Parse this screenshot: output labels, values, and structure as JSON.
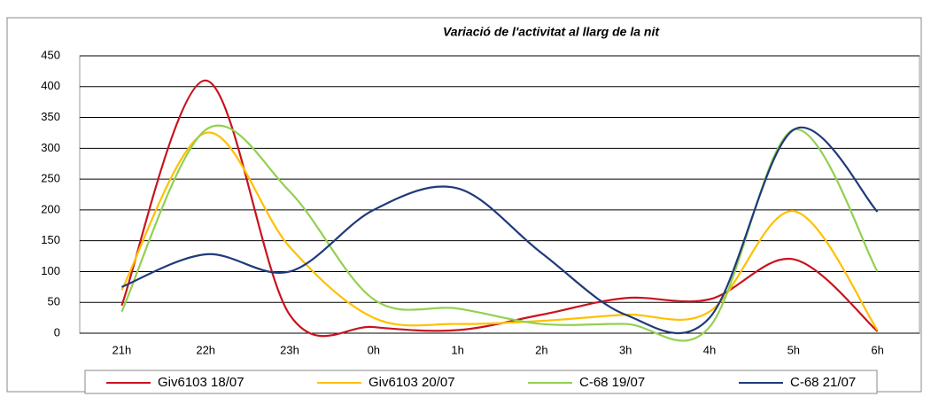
{
  "chart_data": {
    "type": "line",
    "title": "Variació de l'activitat al llarg de la nit",
    "categories": [
      "21h",
      "22h",
      "23h",
      "0h",
      "1h",
      "2h",
      "3h",
      "4h",
      "5h",
      "6h"
    ],
    "series": [
      {
        "name": "Giv6103 18/07",
        "color": "#c8141e",
        "values": [
          45,
          410,
          30,
          10,
          5,
          30,
          57,
          55,
          120,
          3
        ]
      },
      {
        "name": "Giv6103 20/07",
        "color": "#ffc000",
        "values": [
          70,
          325,
          140,
          25,
          15,
          20,
          30,
          35,
          198,
          5
        ]
      },
      {
        "name": "C-68 19/07",
        "color": "#92d050",
        "values": [
          35,
          330,
          230,
          55,
          40,
          15,
          15,
          10,
          330,
          100
        ]
      },
      {
        "name": "C-68 21/07",
        "color": "#1f3a7a",
        "values": [
          75,
          128,
          100,
          200,
          235,
          130,
          30,
          25,
          330,
          197
        ]
      }
    ],
    "ylim": [
      0,
      450
    ],
    "yticks": [
      0,
      50,
      100,
      150,
      200,
      250,
      300,
      350,
      400,
      450
    ],
    "grid": true,
    "smooth": true
  }
}
